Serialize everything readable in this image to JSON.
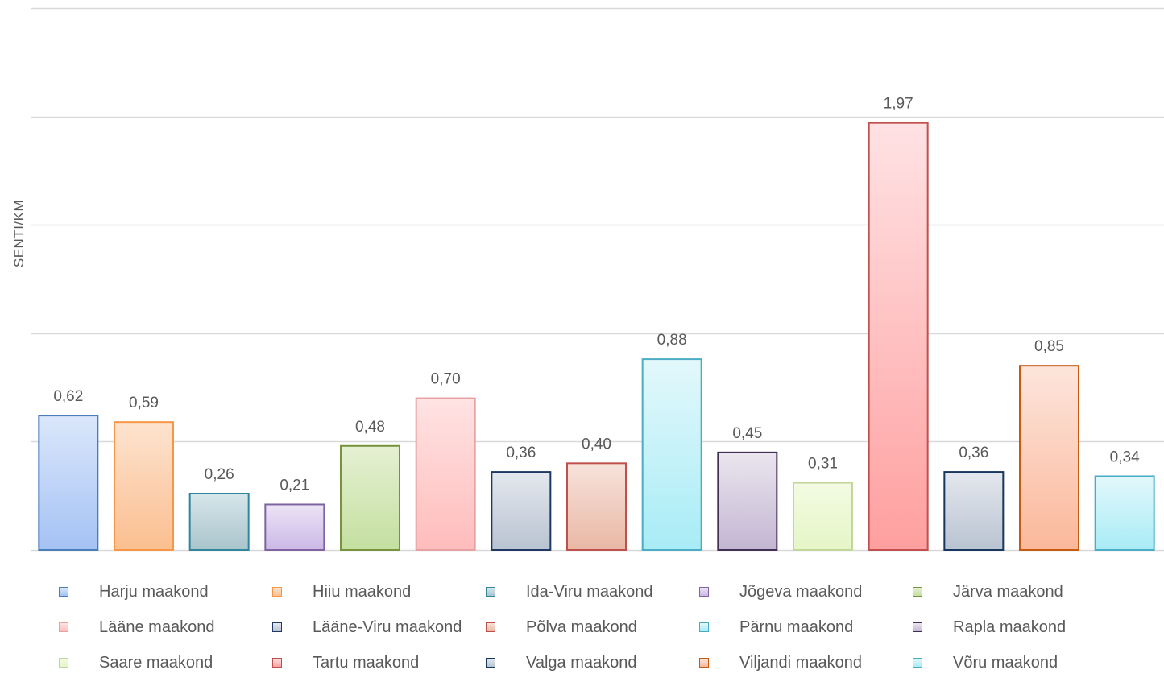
{
  "chart_data": {
    "type": "bar",
    "title": "",
    "xlabel": "",
    "ylabel": "SENTI/KM",
    "ylim": [
      0,
      2.5
    ],
    "grid": true,
    "legend_position": "bottom",
    "categories": [
      "Harju maakond",
      "Hiiu maakond",
      "Ida-Viru maakond",
      "Jõgeva maakond",
      "Järva maakond",
      "Lääne maakond",
      "Lääne-Viru maakond",
      "Põlva maakond",
      "Pärnu maakond",
      "Rapla maakond",
      "Saare maakond",
      "Tartu maakond",
      "Valga maakond",
      "Viljandi maakond",
      "Võru maakond"
    ],
    "values": [
      0.62,
      0.59,
      0.26,
      0.21,
      0.48,
      0.7,
      0.36,
      0.4,
      0.88,
      0.45,
      0.31,
      1.97,
      0.36,
      0.85,
      0.34
    ],
    "data_labels": [
      "0,62",
      "0,59",
      "0,26",
      "0,21",
      "0,48",
      "0,70",
      "0,36",
      "0,40",
      "0,88",
      "0,45",
      "0,31",
      "1,97",
      "0,36",
      "0,85",
      "0,34"
    ],
    "colors": [
      {
        "top": "#dbe7fb",
        "bottom": "#a4c2f4",
        "stroke": "#4a7ebb"
      },
      {
        "top": "#fde3cf",
        "bottom": "#fbbf90",
        "stroke": "#f79646"
      },
      {
        "top": "#d7e6ea",
        "bottom": "#a9c4cc",
        "stroke": "#31859c"
      },
      {
        "top": "#ece4f6",
        "bottom": "#cbb8e6",
        "stroke": "#8064a2"
      },
      {
        "top": "#e5f1d3",
        "bottom": "#c4dfa0",
        "stroke": "#77933c"
      },
      {
        "top": "#ffe3e3",
        "bottom": "#ffbcbc",
        "stroke": "#e6a2a2"
      },
      {
        "top": "#e4e8ee",
        "bottom": "#b9c3d1",
        "stroke": "#1f3864"
      },
      {
        "top": "#f7e3db",
        "bottom": "#e9b8a5",
        "stroke": "#c0504d"
      },
      {
        "top": "#e3f8fb",
        "bottom": "#a8ecf6",
        "stroke": "#4bacc6"
      },
      {
        "top": "#ebe6ef",
        "bottom": "#c3b6d2",
        "stroke": "#403152"
      },
      {
        "top": "#f3fbe3",
        "bottom": "#e5f6c6",
        "stroke": "#c3d69b"
      },
      {
        "top": "#ffe2e4",
        "bottom": "#ff9f9f",
        "stroke": "#c0504d"
      },
      {
        "top": "#e4e8ee",
        "bottom": "#b9c3d1",
        "stroke": "#17375e"
      },
      {
        "top": "#fde5dc",
        "bottom": "#fbb89a",
        "stroke": "#c55a11"
      },
      {
        "top": "#e3f8fb",
        "bottom": "#a8ecf6",
        "stroke": "#4bacc6"
      }
    ],
    "legend_marker_colors": [
      "#4a7ebb",
      "#f79646",
      "#31859c",
      "#8064a2",
      "#77933c",
      "#e6a2a2",
      "#1f3864",
      "#c0504d",
      "#4bacc6",
      "#403152",
      "#c3d69b",
      "#c0504d",
      "#17375e",
      "#c55a11",
      "#4bacc6"
    ]
  }
}
